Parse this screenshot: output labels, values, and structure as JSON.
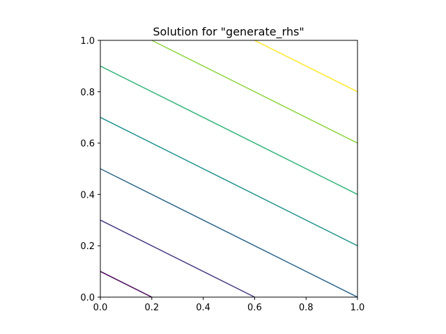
{
  "chart_data": {
    "type": "line",
    "title": "Solution for \"generate_rhs\"",
    "xlabel": "",
    "ylabel": "",
    "xlim": [
      0,
      1
    ],
    "ylim": [
      0,
      1
    ],
    "grid": false,
    "xticks": [
      "0.0",
      "0.2",
      "0.4",
      "0.6",
      "0.8",
      "1.0"
    ],
    "yticks": [
      "0.0",
      "0.2",
      "0.4",
      "0.6",
      "0.8",
      "1.0"
    ],
    "series": [
      {
        "color": "#440154",
        "x": [
          0.0,
          0.2
        ],
        "y": [
          0.1,
          0.0
        ]
      },
      {
        "color": "#443983",
        "x": [
          0.0,
          0.6
        ],
        "y": [
          0.3,
          0.0
        ]
      },
      {
        "color": "#31688e",
        "x": [
          0.0,
          1.0
        ],
        "y": [
          0.5,
          0.0
        ]
      },
      {
        "color": "#21918c",
        "x": [
          0.0,
          1.0
        ],
        "y": [
          0.7,
          0.2
        ]
      },
      {
        "color": "#35b779",
        "x": [
          0.0,
          1.0
        ],
        "y": [
          0.9,
          0.4
        ]
      },
      {
        "color": "#90d743",
        "x": [
          0.2,
          1.0
        ],
        "y": [
          1.0,
          0.6
        ]
      },
      {
        "color": "#fde725",
        "x": [
          0.6,
          1.0
        ],
        "y": [
          1.0,
          0.8
        ]
      }
    ]
  }
}
